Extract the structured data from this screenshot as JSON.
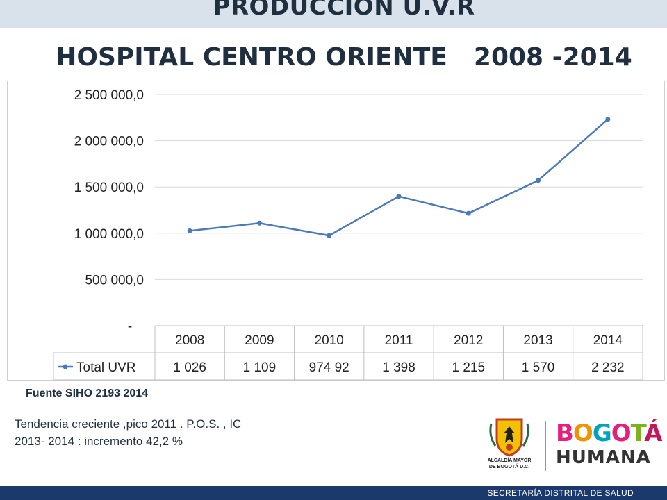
{
  "header": {
    "title_line1": "PRODUCCION U.V.R",
    "title_line2_name": "HOSPITAL  CENTRO ORIENTE",
    "title_line2_years": "2008 -2014"
  },
  "chart_data": {
    "type": "line",
    "title": "",
    "categories": [
      "2008",
      "2009",
      "2010",
      "2011",
      "2012",
      "2013",
      "2014"
    ],
    "series": [
      {
        "name": "Total UVR",
        "values": [
          1026000,
          1109000,
          974920,
          1398000,
          1215000,
          1570000,
          2232000
        ],
        "color": "#4a7ab8"
      }
    ],
    "table_row_labels": [
      "1 026",
      "1 109",
      "974 92",
      "1 398",
      "1 215",
      "1 570",
      "2 232"
    ],
    "y_ticks": [
      0,
      500000,
      1000000,
      1500000,
      2000000,
      2500000
    ],
    "y_tick_labels": [
      "-",
      "500 000,0",
      "1 000 000,0",
      "1 500 000,0",
      "2 000 000,0",
      "2 500 000,0"
    ],
    "ylim": [
      0,
      2500000
    ],
    "grid": true,
    "legend": "data-table"
  },
  "source": "Fuente SIHO 2193 2014",
  "note": {
    "line1": "Tendencia creciente ,pico 2011 . P.O.S. ,  IC",
    "line2": "2013- 2014 : incremento 42,2 %"
  },
  "logo": {
    "alcaldia_line1": "ALCALDÍA MAYOR",
    "alcaldia_line2": "DE BOGOTÁ D.C.",
    "bogota": "BOGOTÁ",
    "humana": "HUMANA"
  },
  "footer": "SECRETARÍA DISTRITAL DE SALUD",
  "colors": {
    "accent_line": "#4a7ab8",
    "title": "#1f2f3f",
    "footer_bg": "#1b3a6b"
  }
}
